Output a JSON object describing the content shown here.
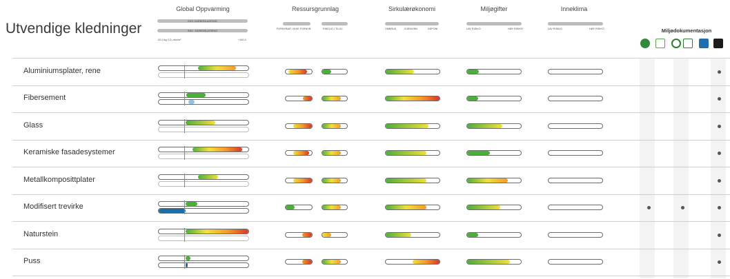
{
  "title": "Utvendige kledninger",
  "chart_data": {
    "type": "table",
    "columns": [
      "Global Oppvarming",
      "Ressursgrunnlag",
      "Sirkulærøkonomi",
      "Miljøgifter",
      "Inneklima"
    ],
    "column_sublabels": {
      "global": [
        "EKS. KARBONLAGRING",
        "INKL. KARBONLAGRING"
      ],
      "global_axis": [
        "-20,0 kg CO₂-ekv/m²",
        "+100,0"
      ],
      "ressurs": [
        "FORNYBAR / IKKE FORNYB.",
        "RIKELIG / TILGJ."
      ],
      "sirkular": [
        "OMBRUK",
        "GJENVINN.",
        "DEPONI"
      ],
      "miljogifter": [
        "LAV RISIKO",
        "HØY RISIKO"
      ],
      "inneklima": [
        "LAV RISIKO",
        "HØY RISIKO"
      ]
    },
    "documentation": {
      "title": "Miljødokumentasjon",
      "icons": [
        "svanemerket-icon",
        "eu-ecolabel-icon",
        "pefc-icon",
        "fsc-icon",
        "m1-icon",
        "epd-icon"
      ]
    },
    "colors": {
      "green": "#4caf3c",
      "yellow": "#f2e13a",
      "orange": "#f39a2b",
      "red": "#d9362a",
      "blue": "#1b6fa8",
      "lightblue": "#8ec6ea"
    },
    "rows": [
      {
        "name": "Aluminiumsplater, rene",
        "gw_excl": [
          0.44,
          0.86
        ],
        "gw_excl_grad": [
          "green",
          "yellow",
          "orange"
        ],
        "gw_incl": null,
        "res_a": [
          0.1,
          0.82
        ],
        "res_a_grad": [
          "yellow",
          "orange",
          "red"
        ],
        "res_b": [
          0.0,
          0.35
        ],
        "res_b_grad": [
          "green",
          "green"
        ],
        "sirk": [
          0.0,
          0.52
        ],
        "sirk_grad": [
          "green",
          "yellow"
        ],
        "milj": [
          0.0,
          0.22
        ],
        "milj_grad": [
          "green",
          "green"
        ],
        "inne": null,
        "docs": [
          false,
          false,
          false,
          true
        ]
      },
      {
        "name": "Fibersement",
        "gw_excl": [
          0.31,
          0.52
        ],
        "gw_excl_grad": [
          "green",
          "green"
        ],
        "gw_incl": [
          0.33,
          0.4
        ],
        "gw_incl_grad": [
          "lightblue",
          "lightblue"
        ],
        "res_a": [
          0.65,
          1.0
        ],
        "res_a_grad": [
          "orange",
          "red"
        ],
        "res_b": [
          0.0,
          0.75
        ],
        "res_b_grad": [
          "green",
          "yellow",
          "orange"
        ],
        "sirk": [
          0.0,
          1.0
        ],
        "sirk_grad": [
          "green",
          "yellow",
          "orange",
          "red"
        ],
        "milj": [
          0.0,
          0.2
        ],
        "milj_grad": [
          "green",
          "green"
        ],
        "inne": null,
        "docs": [
          false,
          false,
          false,
          true
        ]
      },
      {
        "name": "Glass",
        "gw_excl": [
          0.3,
          0.63
        ],
        "gw_excl_grad": [
          "green",
          "yellow"
        ],
        "gw_incl": null,
        "res_a": [
          0.28,
          1.0
        ],
        "res_a_grad": [
          "yellow",
          "orange",
          "red"
        ],
        "res_b": [
          0.0,
          0.75
        ],
        "res_b_grad": [
          "green",
          "yellow",
          "orange"
        ],
        "sirk": [
          0.0,
          0.8
        ],
        "sirk_grad": [
          "green",
          "yellow"
        ],
        "milj": [
          0.0,
          0.65
        ],
        "milj_grad": [
          "green",
          "yellow"
        ],
        "inne": null,
        "docs": [
          false,
          false,
          false,
          true
        ]
      },
      {
        "name": "Keramiske fasadesystemer",
        "gw_excl": [
          0.38,
          0.93
        ],
        "gw_excl_grad": [
          "green",
          "yellow",
          "orange",
          "red"
        ],
        "gw_incl": null,
        "res_a": [
          0.28,
          0.9
        ],
        "res_a_grad": [
          "yellow",
          "orange",
          "red"
        ],
        "res_b": [
          0.0,
          0.75
        ],
        "res_b_grad": [
          "green",
          "yellow",
          "orange"
        ],
        "sirk": [
          0.0,
          0.75
        ],
        "sirk_grad": [
          "green",
          "yellow"
        ],
        "milj": [
          0.0,
          0.42
        ],
        "milj_grad": [
          "green",
          "green"
        ],
        "inne": null,
        "docs": [
          false,
          false,
          false,
          true
        ]
      },
      {
        "name": "Metallkompositt­plater",
        "gw_excl": [
          0.44,
          0.66
        ],
        "gw_excl_grad": [
          "green",
          "yellow"
        ],
        "gw_incl": null,
        "res_a": [
          0.3,
          1.0
        ],
        "res_a_grad": [
          "yellow",
          "orange",
          "red"
        ],
        "res_b": [
          0.0,
          0.75
        ],
        "res_b_grad": [
          "green",
          "yellow",
          "orange"
        ],
        "sirk": [
          0.0,
          0.75
        ],
        "sirk_grad": [
          "green",
          "yellow"
        ],
        "milj": [
          0.0,
          0.75
        ],
        "milj_grad": [
          "green",
          "yellow",
          "orange"
        ],
        "inne": null,
        "docs": [
          false,
          false,
          false,
          true
        ]
      },
      {
        "name": "Modifisert trevirke",
        "gw_excl": [
          0.3,
          0.43
        ],
        "gw_excl_grad": [
          "green",
          "green"
        ],
        "gw_incl": [
          0.0,
          0.3
        ],
        "gw_incl_grad": [
          "blue",
          "blue"
        ],
        "res_a": [
          0.0,
          0.35
        ],
        "res_a_grad": [
          "green",
          "green"
        ],
        "res_b": [
          0.0,
          0.75
        ],
        "res_b_grad": [
          "green",
          "yellow",
          "orange"
        ],
        "sirk": [
          0.0,
          0.75
        ],
        "sirk_grad": [
          "green",
          "yellow",
          "orange"
        ],
        "milj": [
          0.0,
          0.62
        ],
        "milj_grad": [
          "green",
          "yellow"
        ],
        "inne": null,
        "docs": [
          true,
          false,
          true,
          true
        ]
      },
      {
        "name": "Naturstein",
        "gw_excl": [
          0.3,
          1.0
        ],
        "gw_excl_grad": [
          "green",
          "yellow",
          "orange",
          "red"
        ],
        "gw_incl": null,
        "res_a": [
          0.62,
          1.0
        ],
        "res_a_grad": [
          "orange",
          "red"
        ],
        "res_b": [
          0.0,
          0.35
        ],
        "res_b_grad": [
          "yellow",
          "orange"
        ],
        "sirk": [
          0.0,
          0.48
        ],
        "sirk_grad": [
          "green",
          "yellow"
        ],
        "milj": [
          0.0,
          0.2
        ],
        "milj_grad": [
          "green",
          "green"
        ],
        "inne": null,
        "docs": [
          false,
          false,
          false,
          true
        ]
      },
      {
        "name": "Puss",
        "gw_excl": [
          0.3,
          0.35
        ],
        "gw_excl_grad": [
          "green",
          "green"
        ],
        "gw_incl": [
          0.3,
          0.32
        ],
        "gw_incl_grad": [
          "blue",
          "blue"
        ],
        "res_a": [
          0.62,
          1.0
        ],
        "res_a_grad": [
          "orange",
          "red"
        ],
        "res_b": [
          0.0,
          0.75
        ],
        "res_b_grad": [
          "green",
          "yellow",
          "orange"
        ],
        "sirk": [
          0.5,
          1.0
        ],
        "sirk_grad": [
          "yellow",
          "orange",
          "red"
        ],
        "milj": [
          0.0,
          0.8
        ],
        "milj_grad": [
          "green",
          "yellow"
        ],
        "inne": null,
        "docs": [
          false,
          false,
          false,
          true
        ]
      }
    ]
  }
}
